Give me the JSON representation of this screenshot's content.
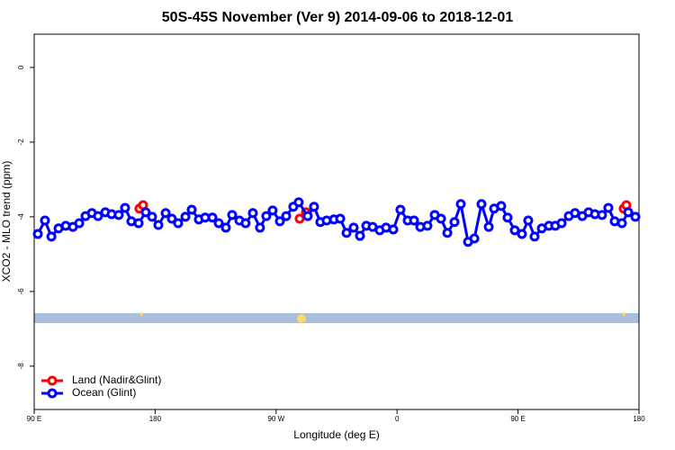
{
  "chart_data": {
    "type": "line",
    "title": "50S-45S November (Ver 9)   2014-09-06 to 2018-12-01",
    "x_label": "Longitude (deg E)",
    "y_label": "XCO2 - MLO trend (ppm)",
    "xlim": [
      90,
      540
    ],
    "xticks": [
      {
        "value": 90,
        "label": "90 E"
      },
      180,
      {
        "value": 270,
        "label": "90 W"
      },
      {
        "value": 360,
        "label": "0"
      },
      {
        "value": 450,
        "label": "90 E"
      },
      {
        "value": 540,
        "label": "180"
      }
    ],
    "ylim": [
      -9.16,
      0.89
    ],
    "yticks": [
      0,
      -2,
      -4,
      -6,
      -8
    ],
    "legend": "bottom-left",
    "series": [
      {
        "name": "Land (Nadir&Glint)",
        "color": "#ff0000",
        "x": [
          168.3,
          171.0,
          null,
          287.5,
          292.2,
          null,
          528.6,
          530.6
        ],
        "values": [
          -3.78,
          -3.69,
          null,
          -4.05,
          -3.88,
          null,
          -3.78,
          -3.69
        ]
      },
      {
        "name": "Ocean (Glint)",
        "color": "#0000ff",
        "x": [
          92.7,
          98.0,
          102.8,
          108.1,
          113.5,
          118.8,
          123.5,
          128.2,
          132.9,
          137.5,
          142.9,
          147.6,
          152.9,
          157.6,
          162.3,
          167.7,
          173.0,
          177.7,
          182.4,
          187.8,
          192.4,
          197.1,
          202.5,
          207.2,
          212.5,
          217.2,
          222.6,
          227.3,
          232.6,
          237.3,
          242.7,
          247.3,
          252.7,
          258.0,
          262.7,
          267.4,
          272.8,
          277.5,
          282.8,
          286.8,
          293.5,
          298.2,
          302.9,
          307.6,
          313.0,
          317.7,
          322.4,
          327.7,
          332.4,
          337.1,
          341.8,
          347.1,
          351.8,
          357.2,
          362.5,
          367.9,
          372.6,
          377.3,
          382.6,
          388.0,
          392.7,
          397.4,
          402.7,
          407.4,
          412.8,
          417.5,
          422.8,
          428.2,
          432.2,
          437.5,
          442.2,
          447.6,
          452.9,
          457.6,
          462.3,
          467.7,
          473.0,
          477.7,
          482.4,
          487.8,
          492.4,
          497.8,
          502.5,
          507.2,
          512.5,
          517.2,
          521.9,
          527.3,
          532.0,
          537.3
        ],
        "values": [
          -4.46,
          -4.1,
          -4.53,
          -4.31,
          -4.24,
          -4.27,
          -4.17,
          -3.98,
          -3.9,
          -3.98,
          -3.88,
          -3.93,
          -3.95,
          -3.76,
          -4.12,
          -4.17,
          -3.88,
          -4.0,
          -4.22,
          -3.9,
          -4.05,
          -4.17,
          -4.0,
          -3.81,
          -4.07,
          -4.02,
          -4.02,
          -4.17,
          -4.29,
          -3.95,
          -4.1,
          -4.17,
          -3.9,
          -4.29,
          -3.98,
          -3.83,
          -4.12,
          -3.98,
          -3.73,
          -3.61,
          -3.98,
          -3.73,
          -4.14,
          -4.1,
          -4.07,
          -4.05,
          -4.43,
          -4.29,
          -4.51,
          -4.24,
          -4.27,
          -4.36,
          -4.29,
          -4.34,
          -3.81,
          -4.1,
          -4.1,
          -4.27,
          -4.24,
          -3.95,
          -4.05,
          -4.43,
          -4.14,
          -3.66,
          -4.67,
          -4.58,
          -3.66,
          -4.27,
          -3.78,
          -3.71,
          -4.02,
          -4.36,
          -4.46,
          -4.1,
          -4.53,
          -4.31,
          -4.24,
          -4.24,
          -4.17,
          -3.98,
          -3.9,
          -3.98,
          -3.88,
          -3.93,
          -3.95,
          -3.76,
          -4.12,
          -4.17,
          -3.88,
          -4.0
        ]
      }
    ]
  }
}
